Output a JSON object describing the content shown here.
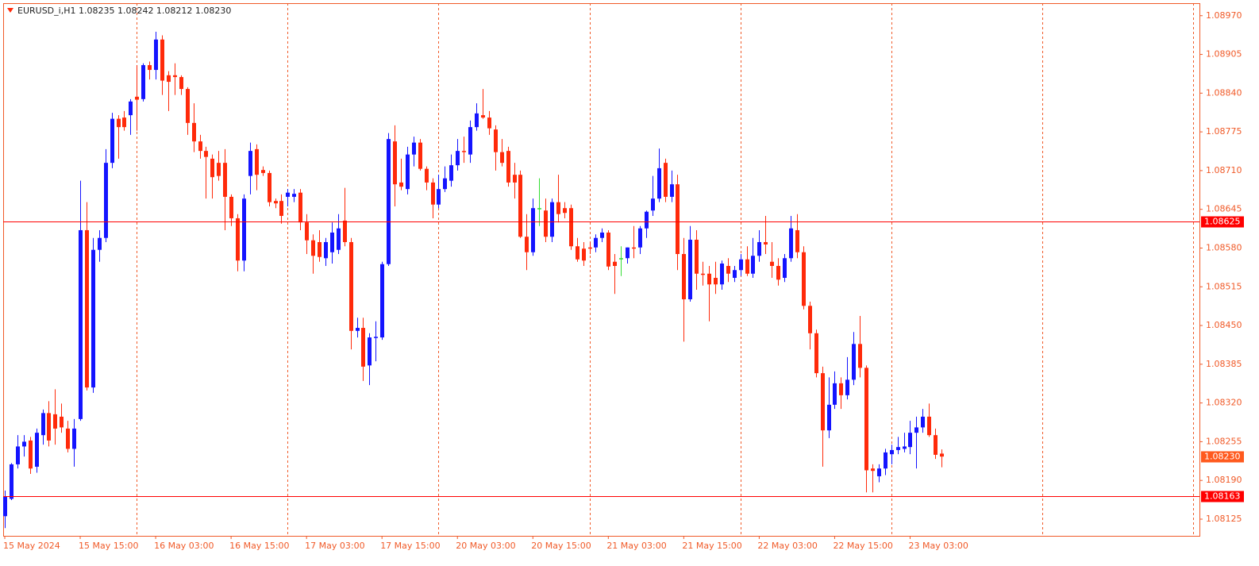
{
  "chart_data": {
    "type": "candlestick",
    "header": "EURUSD_i,H1  1.08235 1.08242 1.08212 1.08230",
    "categories": [
      "15 May 2024",
      null,
      null,
      null,
      null,
      null,
      null,
      null,
      null,
      null,
      null,
      null,
      "15 May 15:00",
      null,
      null,
      null,
      null,
      null,
      null,
      null,
      null,
      null,
      null,
      null,
      "16 May 03:00",
      null,
      null,
      null,
      null,
      null,
      null,
      null,
      null,
      null,
      null,
      null,
      "16 May 15:00",
      null,
      null,
      null,
      null,
      null,
      null,
      null,
      null,
      null,
      null,
      null,
      "17 May 03:00",
      null,
      null,
      null,
      null,
      null,
      null,
      null,
      null,
      null,
      null,
      null,
      "17 May 15:00",
      null,
      null,
      null,
      null,
      null,
      null,
      null,
      null,
      null,
      null,
      null,
      "20 May 03:00",
      null,
      null,
      null,
      null,
      null,
      null,
      null,
      null,
      null,
      null,
      null,
      "20 May 15:00",
      null,
      null,
      null,
      null,
      null,
      null,
      null,
      null,
      null,
      null,
      null,
      "21 May 03:00",
      null,
      null,
      null,
      null,
      null,
      null,
      null,
      null,
      null,
      null,
      null,
      "21 May 15:00",
      null,
      null,
      null,
      null,
      null,
      null,
      null,
      null,
      null,
      null,
      null,
      "22 May 03:00",
      null,
      null,
      null,
      null,
      null,
      null,
      null,
      null,
      null,
      null,
      null,
      "22 May 15:00",
      null,
      null,
      null,
      null,
      null,
      null,
      null,
      null,
      null,
      null,
      null,
      "23 May 03:00",
      null,
      null,
      null,
      null,
      null
    ],
    "open": [
      1.0813,
      1.08159,
      1.08217,
      1.08247,
      1.08257,
      1.08213,
      1.08266,
      1.08303,
      1.08301,
      1.08297,
      1.08277,
      1.08243,
      1.08293,
      1.0861,
      1.08346,
      1.08577,
      1.08597,
      1.08723,
      1.08797,
      1.08799,
      1.08803,
      1.08834,
      1.0883,
      1.08887,
      1.08879,
      1.0893,
      1.0887,
      1.0887,
      1.08867,
      1.08847,
      1.0879,
      1.08759,
      1.08743,
      1.0873,
      1.08723,
      1.08723,
      1.08666,
      1.0863,
      1.08559,
      1.08701,
      1.08746,
      1.08711,
      1.08706,
      1.08659,
      1.08659,
      1.08666,
      1.08666,
      1.08673,
      1.08623,
      1.08593,
      1.0859,
      1.08563,
      1.08573,
      1.08577,
      1.08626,
      1.0859,
      1.08441,
      1.08446,
      1.08383,
      1.0843,
      1.0843,
      1.08553,
      1.08759,
      1.0869,
      1.08679,
      1.08737,
      1.08757,
      1.08713,
      1.0869,
      1.08653,
      1.08679,
      1.08693,
      1.08719,
      1.08743,
      1.08737,
      1.08783,
      1.08803,
      1.08799,
      1.08779,
      1.08741,
      1.08743,
      1.08703,
      1.08703,
      1.08599,
      1.08573,
      1.08647,
      1.08643,
      1.08599,
      1.08657,
      1.08647,
      1.08647,
      1.08583,
      1.08579,
      1.08581,
      1.08581,
      1.08597,
      1.08606,
      1.08557,
      1.08563,
      1.08563,
      1.08581,
      1.08581,
      1.08613,
      1.08643,
      1.08663,
      1.08723,
      1.08666,
      1.08687,
      1.0857,
      1.08494,
      1.08594,
      1.08537,
      1.08537,
      1.0853,
      1.08519,
      1.0855,
      1.0853,
      1.08543,
      1.08561,
      1.08537,
      1.08567,
      1.0859,
      1.08557,
      1.0855,
      1.0853,
      1.08563,
      1.0861,
      1.08573,
      1.08483,
      1.08437,
      1.0837,
      1.08274,
      1.08317,
      1.08353,
      1.08333,
      1.08359,
      1.08419,
      1.08379,
      1.0821,
      1.08197,
      1.0821,
      1.08234,
      1.08241,
      1.08243,
      1.08246,
      1.0827,
      1.08279,
      1.08297,
      1.08266,
      1.08235
    ],
    "high": [
      1.08173,
      1.08219,
      1.08266,
      1.08266,
      1.08263,
      1.08277,
      1.08309,
      1.08323,
      1.08343,
      1.08319,
      1.0829,
      1.08293,
      1.08693,
      1.08657,
      1.08597,
      1.0861,
      1.08746,
      1.08807,
      1.08803,
      1.0881,
      1.0883,
      1.08887,
      1.0889,
      1.08893,
      1.08943,
      1.08937,
      1.08877,
      1.0889,
      1.0887,
      1.0885,
      1.08823,
      1.0877,
      1.0875,
      1.08737,
      1.08743,
      1.08746,
      1.0867,
      1.08637,
      1.0867,
      1.08757,
      1.08754,
      1.08717,
      1.0871,
      1.08663,
      1.0867,
      1.08679,
      1.08679,
      1.08679,
      1.08637,
      1.08603,
      1.0861,
      1.08597,
      1.08623,
      1.08637,
      1.08681,
      1.08597,
      1.08463,
      1.08463,
      1.08437,
      1.08457,
      1.08557,
      1.08773,
      1.08786,
      1.0873,
      1.0875,
      1.08767,
      1.08763,
      1.08717,
      1.08697,
      1.08703,
      1.08717,
      1.08737,
      1.08763,
      1.08767,
      1.08794,
      1.08823,
      1.08847,
      1.0881,
      1.08786,
      1.08763,
      1.0875,
      1.08723,
      1.0871,
      1.08637,
      1.08663,
      1.08697,
      1.08663,
      1.08663,
      1.08703,
      1.08657,
      1.08653,
      1.08597,
      1.0859,
      1.0859,
      1.08603,
      1.08613,
      1.0861,
      1.0857,
      1.08583,
      1.08581,
      1.08617,
      1.08617,
      1.08643,
      1.08701,
      1.08747,
      1.0873,
      1.0871,
      1.08703,
      1.08597,
      1.08617,
      1.0861,
      1.08557,
      1.0855,
      1.08557,
      1.08559,
      1.08563,
      1.0855,
      1.0857,
      1.08583,
      1.08597,
      1.0861,
      1.08634,
      1.0859,
      1.08563,
      1.0857,
      1.08634,
      1.08637,
      1.08583,
      1.0849,
      1.08443,
      1.08381,
      1.08363,
      1.08373,
      1.08363,
      1.08397,
      1.08439,
      1.08466,
      1.08383,
      1.08217,
      1.08217,
      1.08243,
      1.0825,
      1.08263,
      1.0827,
      1.0829,
      1.08297,
      1.0831,
      1.08319,
      1.08277,
      1.08242
    ],
    "low": [
      1.0811,
      1.08157,
      1.0821,
      1.0823,
      1.08201,
      1.08203,
      1.0825,
      1.08247,
      1.0825,
      1.0827,
      1.08237,
      1.08213,
      1.0829,
      1.08341,
      1.08337,
      1.08557,
      1.0859,
      1.08714,
      1.0873,
      1.08777,
      1.0877,
      1.08777,
      1.08826,
      1.08863,
      1.08863,
      1.08837,
      1.0881,
      1.08837,
      1.08837,
      1.0877,
      1.08741,
      1.0873,
      1.08663,
      1.08663,
      1.08693,
      1.0861,
      1.08617,
      1.08541,
      1.08541,
      1.0867,
      1.08677,
      1.08701,
      1.0865,
      1.08647,
      1.08621,
      1.0865,
      1.08657,
      1.0861,
      1.0857,
      1.08537,
      1.08557,
      1.0855,
      1.08554,
      1.0857,
      1.08583,
      1.0841,
      1.0843,
      1.08357,
      1.0835,
      1.0839,
      1.08426,
      1.0855,
      1.0865,
      1.08677,
      1.0867,
      1.08717,
      1.0871,
      1.08677,
      1.0863,
      1.08647,
      1.08674,
      1.08683,
      1.0871,
      1.08723,
      1.08723,
      1.08777,
      1.08797,
      1.0877,
      1.0871,
      1.08717,
      1.08683,
      1.08663,
      1.08597,
      1.08543,
      1.08567,
      1.08617,
      1.0859,
      1.0859,
      1.08623,
      1.0863,
      1.08577,
      1.08557,
      1.0855,
      1.0857,
      1.08573,
      1.0859,
      1.08543,
      1.08503,
      1.08533,
      1.08554,
      1.08563,
      1.0857,
      1.08597,
      1.08634,
      1.08657,
      1.08657,
      1.08657,
      1.08543,
      1.08423,
      1.0849,
      1.0851,
      1.08517,
      1.08457,
      1.08503,
      1.0851,
      1.08523,
      1.08523,
      1.08533,
      1.08533,
      1.0853,
      1.08557,
      1.0857,
      1.0853,
      1.08517,
      1.08523,
      1.08557,
      1.08563,
      1.08477,
      1.0841,
      1.08363,
      1.08213,
      1.08261,
      1.0831,
      1.0831,
      1.08326,
      1.0835,
      1.08363,
      1.0817,
      1.0817,
      1.08187,
      1.08199,
      1.08217,
      1.08234,
      1.08237,
      1.08234,
      1.0821,
      1.0827,
      1.08263,
      1.08226,
      1.08212
    ],
    "close": [
      1.08163,
      1.08217,
      1.08247,
      1.08255,
      1.0821,
      1.0827,
      1.08303,
      1.08257,
      1.08277,
      1.08279,
      1.08243,
      1.08277,
      1.0861,
      1.08346,
      1.08577,
      1.08597,
      1.08723,
      1.08797,
      1.08783,
      1.08783,
      1.08826,
      1.08829,
      1.08887,
      1.08879,
      1.0893,
      1.08861,
      1.08859,
      1.08867,
      1.08847,
      1.0879,
      1.08759,
      1.08743,
      1.08733,
      1.08699,
      1.08701,
      1.08666,
      1.0863,
      1.08559,
      1.08663,
      1.08743,
      1.08703,
      1.08706,
      1.08657,
      1.08655,
      1.08634,
      1.08673,
      1.08671,
      1.08623,
      1.08593,
      1.08567,
      1.08565,
      1.0859,
      1.08606,
      1.08613,
      1.0859,
      1.08441,
      1.08446,
      1.08381,
      1.0843,
      1.08431,
      1.08553,
      1.08763,
      1.08687,
      1.08683,
      1.08737,
      1.08757,
      1.08713,
      1.0869,
      1.08653,
      1.08679,
      1.08697,
      1.08719,
      1.08743,
      1.08741,
      1.08783,
      1.08806,
      1.08799,
      1.08781,
      1.08741,
      1.08723,
      1.0869,
      1.0869,
      1.08599,
      1.08573,
      1.08647,
      1.08647,
      1.08599,
      1.08657,
      1.08637,
      1.08639,
      1.08583,
      1.08561,
      1.08559,
      1.08579,
      1.08597,
      1.08606,
      1.08549,
      1.0855,
      1.08563,
      1.08581,
      1.08579,
      1.08613,
      1.08641,
      1.08663,
      1.08714,
      1.08666,
      1.08687,
      1.0857,
      1.08494,
      1.08594,
      1.08537,
      1.08535,
      1.08519,
      1.08519,
      1.08554,
      1.08537,
      1.08543,
      1.08561,
      1.08537,
      1.08567,
      1.0859,
      1.08586,
      1.0855,
      1.08527,
      1.08563,
      1.08613,
      1.08573,
      1.08483,
      1.08437,
      1.0837,
      1.08274,
      1.08317,
      1.08353,
      1.08333,
      1.08359,
      1.08419,
      1.08379,
      1.08207,
      1.08206,
      1.0821,
      1.08237,
      1.08241,
      1.08246,
      1.08247,
      1.0827,
      1.08279,
      1.08297,
      1.08266,
      1.08233,
      1.0823
    ],
    "up_color": "#1414ff",
    "down_color": "#ff2a0a",
    "doji_color": "#33dd33",
    "axis_color": "#f05a28",
    "ylim": [
      1.08097,
      1.08991
    ],
    "yticks": [
      {
        "value": 1.0897,
        "label": "1.08970"
      },
      1.08905,
      {
        "value": 1.0884,
        "label": "1.08840"
      },
      1.08775,
      {
        "value": 1.0871,
        "label": "1.08710"
      },
      1.08645,
      {
        "value": 1.0858,
        "label": "1.08580"
      },
      1.08515,
      {
        "value": 1.0845,
        "label": "1.08450"
      },
      1.08385,
      {
        "value": 1.0832,
        "label": "1.08320"
      },
      1.08255,
      {
        "value": 1.0819,
        "label": "1.08190"
      },
      1.08125
    ],
    "hlines": [
      {
        "value": 1.08625,
        "color": "#ff0000"
      },
      {
        "value": 1.08163,
        "color": "#ff0000"
      }
    ],
    "last_price": {
      "value": 1.0823,
      "label": "1.08230",
      "color": "#ff5a1e"
    }
  }
}
